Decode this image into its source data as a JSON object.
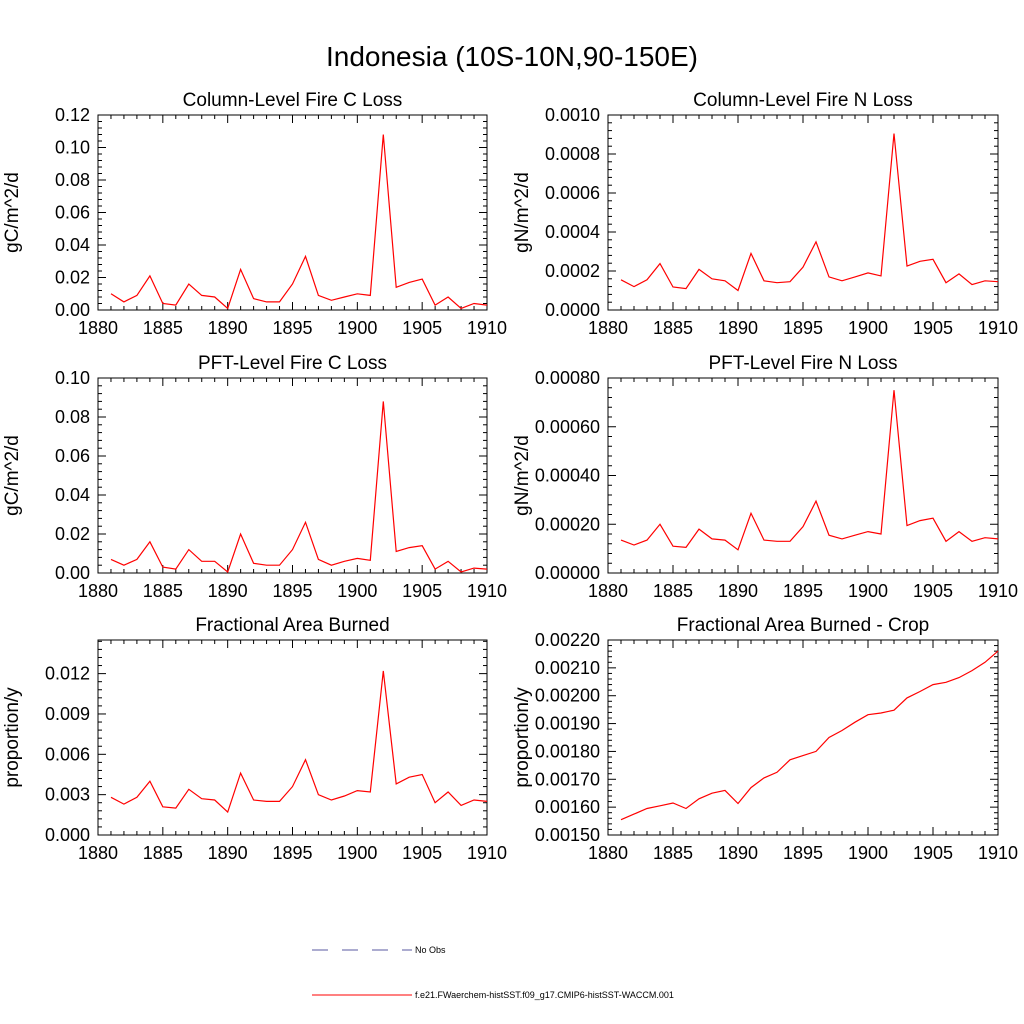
{
  "title": "Indonesia (10S-10N,90-150E)",
  "legend": {
    "entries": [
      {
        "label": "No Obs",
        "color": "#5a5aa0",
        "dash": true
      },
      {
        "label": "f.e21.FWaerchem-histSST.f09_g17.CMIP6-histSST-WACCM.001",
        "color": "#ff0000",
        "dash": false
      }
    ]
  },
  "chart_data": [
    {
      "type": "line",
      "title": "Column-Level Fire C Loss",
      "ylabel": "gC/m^2/d",
      "xlim": [
        1880,
        1910
      ],
      "ylim": [
        0,
        0.12
      ],
      "xticks": [
        1880,
        1885,
        1890,
        1895,
        1900,
        1905,
        1910
      ],
      "xtick_labels": [
        "1880",
        "1885",
        "1890",
        "1895",
        "1900",
        "1905",
        "1910"
      ],
      "yticks": [
        0,
        0.02,
        0.04,
        0.06,
        0.08,
        0.1,
        0.12
      ],
      "ytick_labels": [
        "0.00",
        "0.02",
        "0.04",
        "0.06",
        "0.08",
        "0.10",
        "0.12"
      ],
      "x": [
        1881,
        1882,
        1883,
        1884,
        1885,
        1886,
        1887,
        1888,
        1889,
        1890,
        1891,
        1892,
        1893,
        1894,
        1895,
        1896,
        1897,
        1898,
        1899,
        1900,
        1901,
        1902,
        1903,
        1904,
        1905,
        1906,
        1907,
        1908,
        1909,
        1910
      ],
      "series": [
        {
          "values": [
            0.01,
            0.005,
            0.009,
            0.021,
            0.004,
            0.003,
            0.016,
            0.009,
            0.008,
            0.001,
            0.025,
            0.007,
            0.005,
            0.005,
            0.016,
            0.033,
            0.009,
            0.006,
            0.008,
            0.01,
            0.009,
            0.108,
            0.014,
            0.017,
            0.019,
            0.003,
            0.008,
            0.001,
            0.004,
            0.003
          ],
          "color": "#ff0000"
        }
      ]
    },
    {
      "type": "line",
      "title": "Column-Level Fire N Loss",
      "ylabel": "gN/m^2/d",
      "xlim": [
        1880,
        1910
      ],
      "ylim": [
        0,
        0.001
      ],
      "xticks": [
        1880,
        1885,
        1890,
        1895,
        1900,
        1905,
        1910
      ],
      "xtick_labels": [
        "1880",
        "1885",
        "1890",
        "1895",
        "1900",
        "1905",
        "1910"
      ],
      "yticks": [
        0,
        0.0002,
        0.0004,
        0.0006,
        0.0008,
        0.001
      ],
      "ytick_labels": [
        "0.0000",
        "0.0002",
        "0.0004",
        "0.0006",
        "0.0008",
        "0.0010"
      ],
      "x": [
        1881,
        1882,
        1883,
        1884,
        1885,
        1886,
        1887,
        1888,
        1889,
        1890,
        1891,
        1892,
        1893,
        1894,
        1895,
        1896,
        1897,
        1898,
        1899,
        1900,
        1901,
        1902,
        1903,
        1904,
        1905,
        1906,
        1907,
        1908,
        1909,
        1910
      ],
      "series": [
        {
          "values": [
            0.000155,
            0.00012,
            0.000155,
            0.000238,
            0.000118,
            0.00011,
            0.000208,
            0.00016,
            0.00015,
            0.0001,
            0.00029,
            0.00015,
            0.00014,
            0.000145,
            0.00022,
            0.00035,
            0.00017,
            0.00015,
            0.00017,
            0.00019,
            0.000175,
            0.000905,
            0.000225,
            0.00025,
            0.00026,
            0.00014,
            0.000185,
            0.00013,
            0.00015,
            0.000145
          ],
          "color": "#ff0000"
        }
      ]
    },
    {
      "type": "line",
      "title": "PFT-Level Fire C Loss",
      "ylabel": "gC/m^2/d",
      "xlim": [
        1880,
        1910
      ],
      "ylim": [
        0,
        0.1
      ],
      "xticks": [
        1880,
        1885,
        1890,
        1895,
        1900,
        1905,
        1910
      ],
      "xtick_labels": [
        "1880",
        "1885",
        "1890",
        "1895",
        "1900",
        "1905",
        "1910"
      ],
      "yticks": [
        0,
        0.02,
        0.04,
        0.06,
        0.08,
        0.1
      ],
      "ytick_labels": [
        "0.00",
        "0.02",
        "0.04",
        "0.06",
        "0.08",
        "0.10"
      ],
      "x": [
        1881,
        1882,
        1883,
        1884,
        1885,
        1886,
        1887,
        1888,
        1889,
        1890,
        1891,
        1892,
        1893,
        1894,
        1895,
        1896,
        1897,
        1898,
        1899,
        1900,
        1901,
        1902,
        1903,
        1904,
        1905,
        1906,
        1907,
        1908,
        1909,
        1910
      ],
      "series": [
        {
          "values": [
            0.007,
            0.004,
            0.007,
            0.016,
            0.003,
            0.002,
            0.012,
            0.006,
            0.006,
            0.0005,
            0.02,
            0.005,
            0.004,
            0.004,
            0.012,
            0.026,
            0.007,
            0.004,
            0.006,
            0.0075,
            0.0065,
            0.088,
            0.011,
            0.013,
            0.014,
            0.002,
            0.006,
            0.0005,
            0.0025,
            0.002
          ],
          "color": "#ff0000"
        }
      ]
    },
    {
      "type": "line",
      "title": "PFT-Level Fire N Loss",
      "ylabel": "gN/m^2/d",
      "xlim": [
        1880,
        1910
      ],
      "ylim": [
        0,
        0.0008
      ],
      "xticks": [
        1880,
        1885,
        1890,
        1895,
        1900,
        1905,
        1910
      ],
      "xtick_labels": [
        "1880",
        "1885",
        "1890",
        "1895",
        "1900",
        "1905",
        "1910"
      ],
      "yticks": [
        0,
        0.0002,
        0.0004,
        0.0006,
        0.0008
      ],
      "ytick_labels": [
        "0.00000",
        "0.00020",
        "0.00040",
        "0.00060",
        "0.00080"
      ],
      "x": [
        1881,
        1882,
        1883,
        1884,
        1885,
        1886,
        1887,
        1888,
        1889,
        1890,
        1891,
        1892,
        1893,
        1894,
        1895,
        1896,
        1897,
        1898,
        1899,
        1900,
        1901,
        1902,
        1903,
        1904,
        1905,
        1906,
        1907,
        1908,
        1909,
        1910
      ],
      "series": [
        {
          "values": [
            0.000135,
            0.000115,
            0.000135,
            0.0002,
            0.00011,
            0.000105,
            0.00018,
            0.00014,
            0.000135,
            9.5e-05,
            0.000245,
            0.000135,
            0.00013,
            0.00013,
            0.00019,
            0.000295,
            0.000155,
            0.00014,
            0.000155,
            0.00017,
            0.00016,
            0.00075,
            0.000195,
            0.000215,
            0.000225,
            0.00013,
            0.00017,
            0.00013,
            0.000145,
            0.00014
          ],
          "color": "#ff0000"
        }
      ]
    },
    {
      "type": "line",
      "title": "Fractional Area Burned",
      "ylabel": "proportion/y",
      "xlim": [
        1880,
        1910
      ],
      "ylim": [
        0,
        0.0145
      ],
      "xticks": [
        1880,
        1885,
        1890,
        1895,
        1900,
        1905,
        1910
      ],
      "xtick_labels": [
        "1880",
        "1885",
        "1890",
        "1895",
        "1900",
        "1905",
        "1910"
      ],
      "yticks": [
        0,
        0.003,
        0.006,
        0.009,
        0.012
      ],
      "ytick_labels": [
        "0.000",
        "0.003",
        "0.006",
        "0.009",
        "0.012"
      ],
      "x": [
        1881,
        1882,
        1883,
        1884,
        1885,
        1886,
        1887,
        1888,
        1889,
        1890,
        1891,
        1892,
        1893,
        1894,
        1895,
        1896,
        1897,
        1898,
        1899,
        1900,
        1901,
        1902,
        1903,
        1904,
        1905,
        1906,
        1907,
        1908,
        1909,
        1910
      ],
      "series": [
        {
          "values": [
            0.0028,
            0.0023,
            0.0028,
            0.004,
            0.0021,
            0.002,
            0.0034,
            0.0027,
            0.0026,
            0.0017,
            0.0046,
            0.0026,
            0.0025,
            0.0025,
            0.0036,
            0.0056,
            0.003,
            0.0026,
            0.0029,
            0.0033,
            0.0032,
            0.0122,
            0.0038,
            0.0043,
            0.0045,
            0.0024,
            0.0032,
            0.0022,
            0.0026,
            0.0025
          ],
          "color": "#ff0000"
        }
      ]
    },
    {
      "type": "line",
      "title": "Fractional Area Burned - Crop",
      "ylabel": "proportion/y",
      "xlim": [
        1880,
        1910
      ],
      "ylim": [
        0.0015,
        0.0022
      ],
      "xticks": [
        1880,
        1885,
        1890,
        1895,
        1900,
        1905,
        1910
      ],
      "xtick_labels": [
        "1880",
        "1885",
        "1890",
        "1895",
        "1900",
        "1905",
        "1910"
      ],
      "yticks": [
        0.0015,
        0.0016,
        0.0017,
        0.0018,
        0.0019,
        0.002,
        0.0021,
        0.0022
      ],
      "ytick_labels": [
        "0.00150",
        "0.00160",
        "0.00170",
        "0.00180",
        "0.00190",
        "0.00200",
        "0.00210",
        "0.00220"
      ],
      "x": [
        1881,
        1882,
        1883,
        1884,
        1885,
        1886,
        1887,
        1888,
        1889,
        1890,
        1891,
        1892,
        1893,
        1894,
        1895,
        1896,
        1897,
        1898,
        1899,
        1900,
        1901,
        1902,
        1903,
        1904,
        1905,
        1906,
        1907,
        1908,
        1909,
        1910
      ],
      "series": [
        {
          "values": [
            0.001555,
            0.001575,
            0.001595,
            0.001605,
            0.001615,
            0.001595,
            0.00163,
            0.00165,
            0.00166,
            0.001613,
            0.00167,
            0.001705,
            0.001725,
            0.00177,
            0.001785,
            0.0018,
            0.00185,
            0.001875,
            0.001905,
            0.001932,
            0.001938,
            0.001948,
            0.001992,
            0.002015,
            0.00204,
            0.002048,
            0.002065,
            0.00209,
            0.00212,
            0.00216
          ],
          "color": "#ff0000"
        }
      ]
    }
  ]
}
